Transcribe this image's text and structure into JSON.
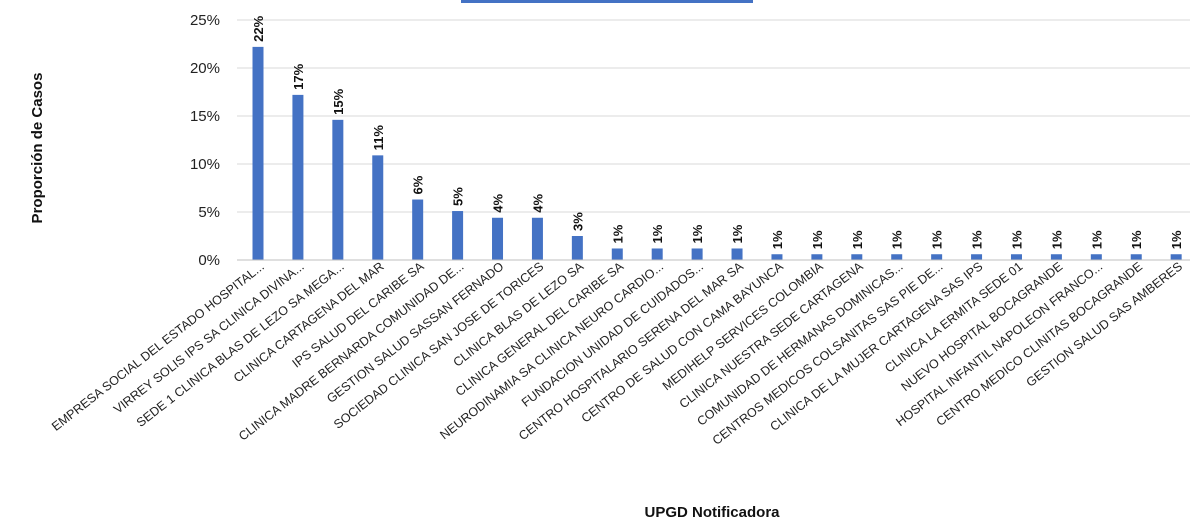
{
  "chart_data": {
    "type": "bar",
    "title": "",
    "xlabel": "UPGD Notificadora",
    "ylabel": "Proporción de Casos",
    "ylim": [
      0,
      25
    ],
    "y_ticks": [
      0,
      5,
      10,
      15,
      20,
      25
    ],
    "y_tick_labels": [
      "0%",
      "5%",
      "10%",
      "15%",
      "20%",
      "25%"
    ],
    "grid": "horizontal",
    "bar_color": "#4472C4",
    "categories": [
      "EMPRESA SOCIAL DEL ESTADO HOSPITAL...",
      "VIRREY  SOLIS IPS SA CLINICA DIVINA...",
      "SEDE 1 CLINICA BLAS DE LEZO  SA  MEGA...",
      "CLINICA  CARTAGENA DEL MAR",
      "IPS SALUD DEL CARIBE SA",
      "CLINICA MADRE BERNARDA COMUNIDAD DE...",
      "GESTION SALUD SASSAN FERNADO",
      "SOCIEDAD CLINICA SAN JOSE DE TORICES",
      "CLINICA  BLAS  DE  LEZO SA",
      "CLINICA GENERAL DEL CARIBE SA",
      "NEURODINAMIA SA CLINICA NEURO CARDIO...",
      "FUNDACION UNIDAD DE CUIDADOS...",
      "CENTRO HOSPITALARIO SERENA DEL MAR SA",
      "CENTRO DE SALUD CON CAMA BAYUNCA",
      "MEDIHELP SERVICES COLOMBIA",
      "CLINICA NUESTRA SEDE CARTAGENA",
      "COMUNIDAD DE HERMANAS DOMINICAS...",
      "CENTROS MEDICOS  COLSANITAS  SAS  PIE DE...",
      "CLINICA DE LA MUJER  CARTAGENA  SAS IPS",
      "CLINICA LA ERMITA SEDE 01",
      "NUEVO HOSPITAL BOCAGRANDE",
      "HOSPITAL INFANTIL NAPOLEON FRANCO...",
      "CENTRO MEDICO CLINITAS BOCAGRANDE",
      "GESTION SALUD SAS AMBERES"
    ],
    "values": [
      22.2,
      17.2,
      14.6,
      10.9,
      6.3,
      5.1,
      4.4,
      4.4,
      2.5,
      1.2,
      1.2,
      1.2,
      1.2,
      0.6,
      0.6,
      0.6,
      0.6,
      0.6,
      0.6,
      0.6,
      0.6,
      0.6,
      0.6,
      0.6
    ],
    "data_labels": [
      "22%",
      "17%",
      "15%",
      "11%",
      "6%",
      "5%",
      "4%",
      "4%",
      "3%",
      "1%",
      "1%",
      "1%",
      "1%",
      "1%",
      "1%",
      "1%",
      "1%",
      "1%",
      "1%",
      "1%",
      "1%",
      "1%",
      "1%",
      "1%"
    ]
  }
}
